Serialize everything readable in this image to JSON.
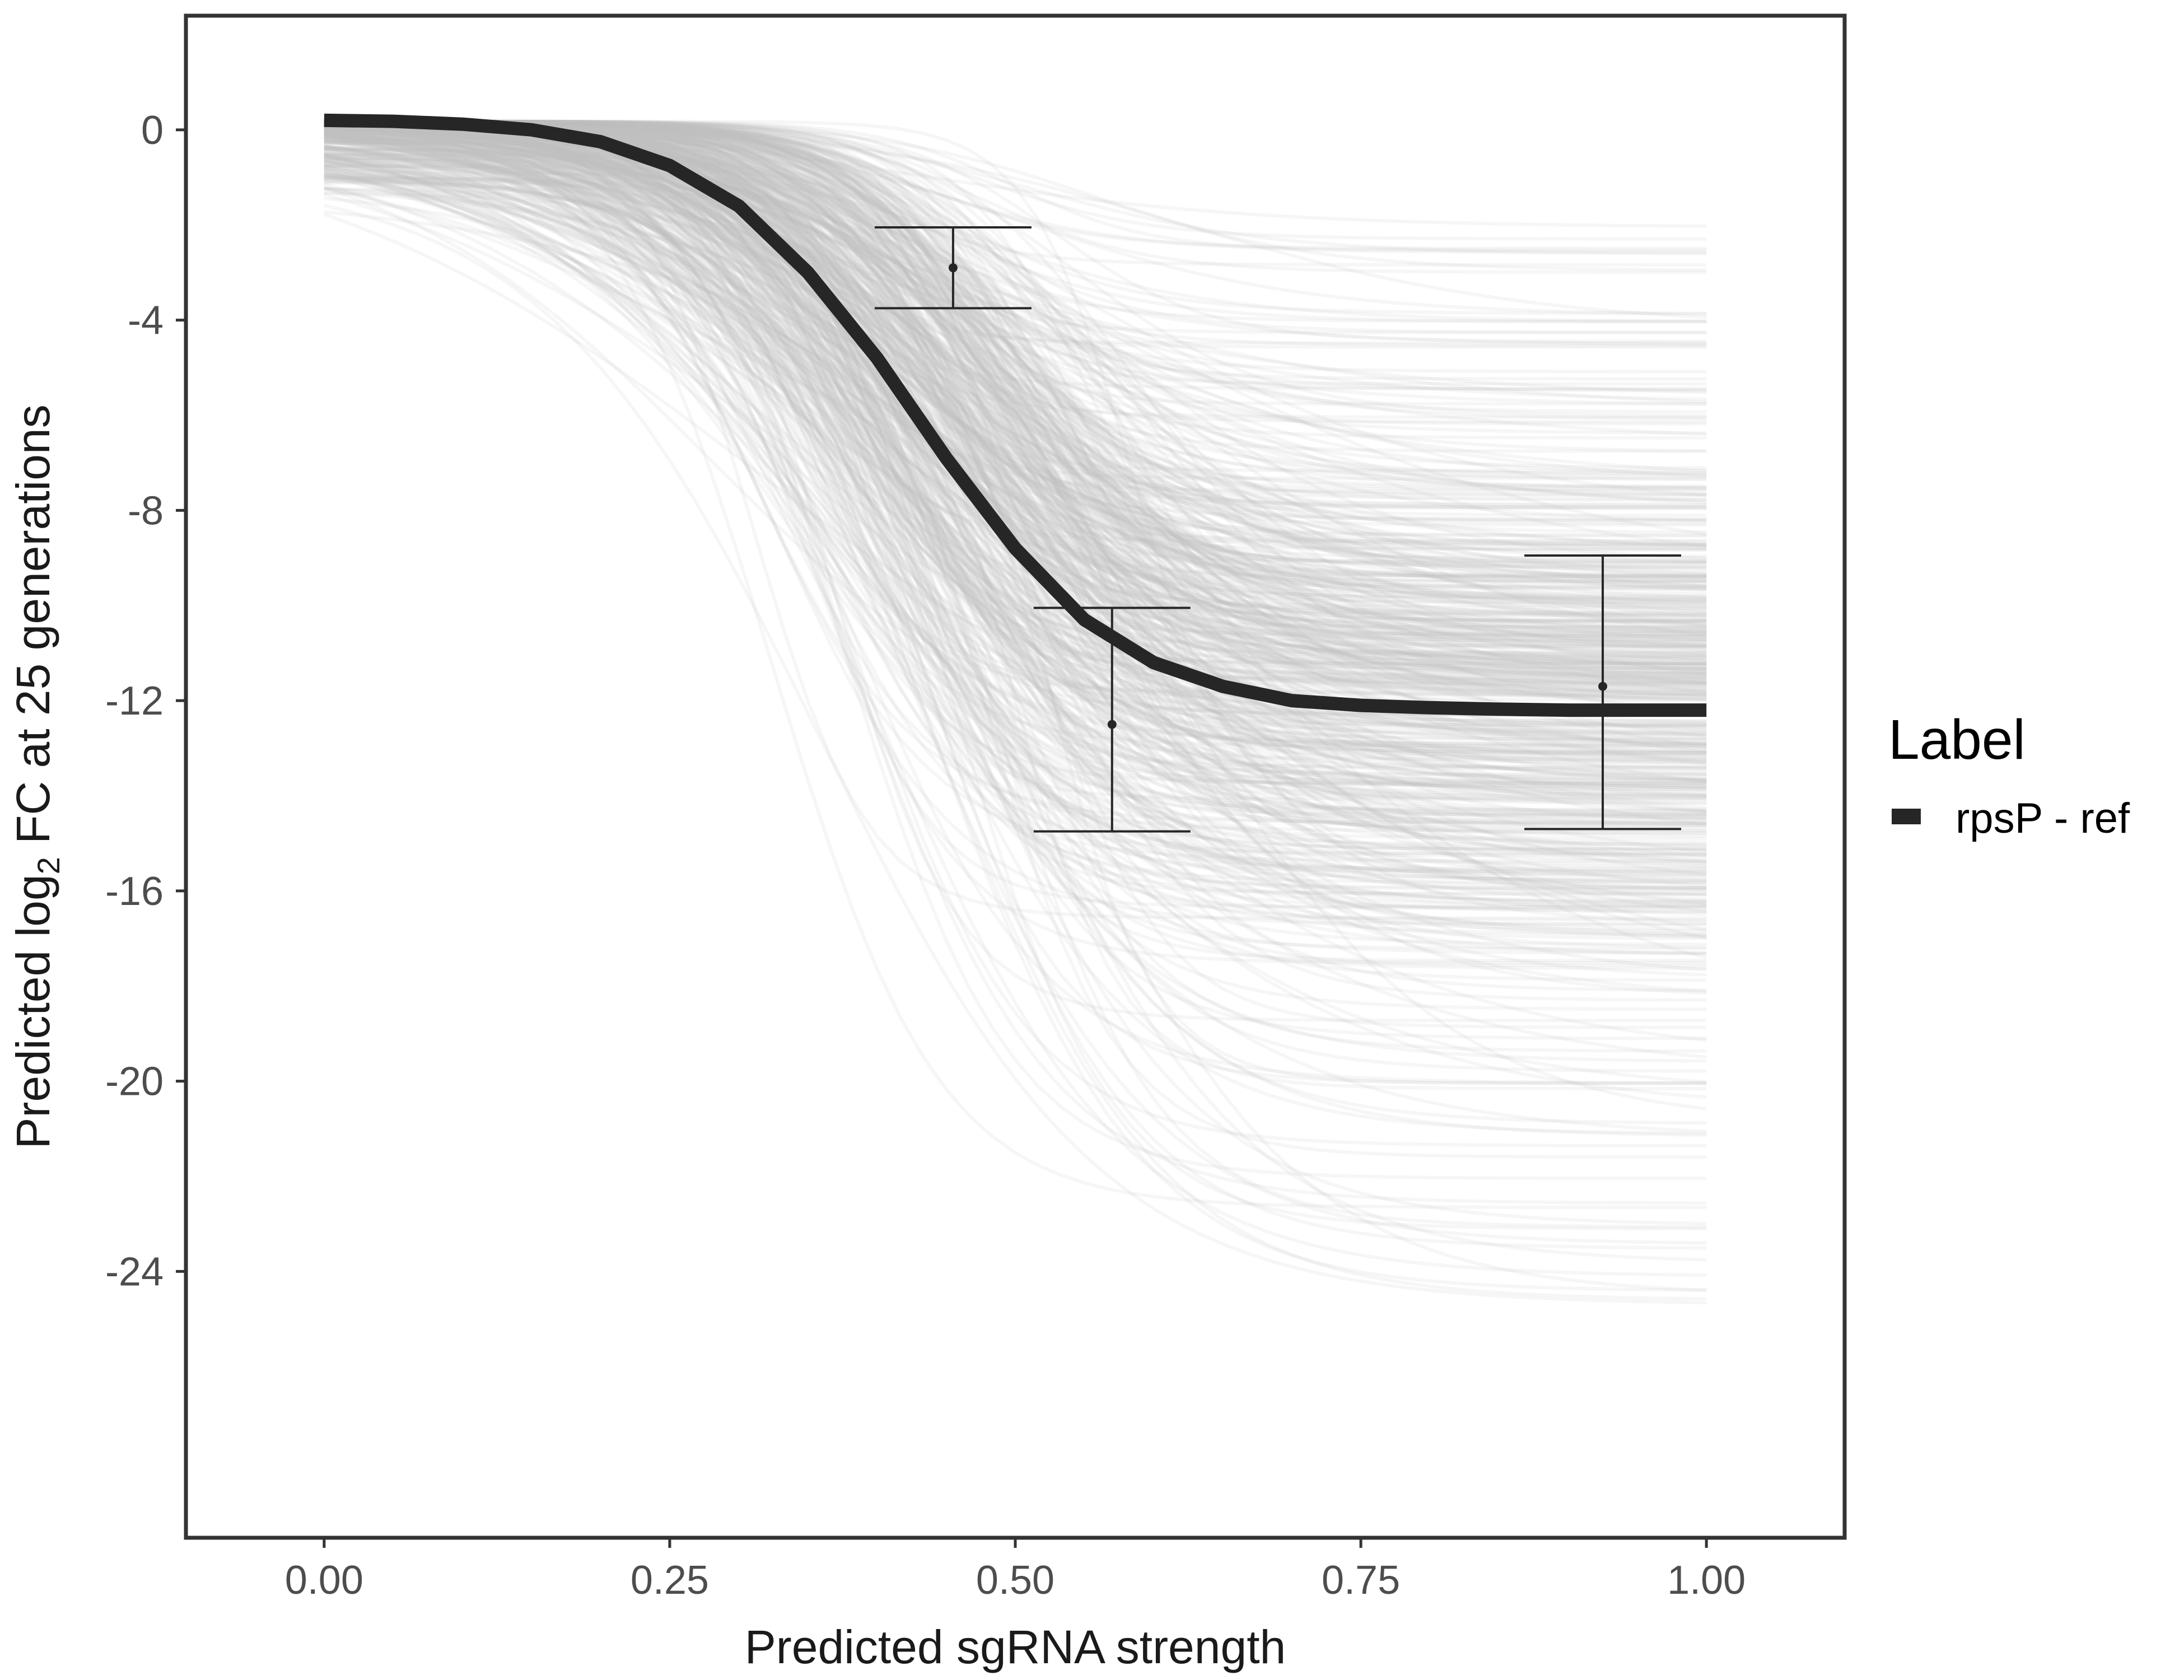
{
  "chart_data": {
    "type": "line",
    "xlabel": "Predicted sgRNA strength",
    "ylabel": {
      "prefix": "Predicted  log",
      "subscript": "2",
      "suffix": " FC at 25 generations"
    },
    "xlim": [
      -0.1,
      1.1
    ],
    "ylim": [
      -29.6,
      2.4
    ],
    "x_ticks": [
      {
        "value": 0.0,
        "label": "0.00"
      },
      {
        "value": 0.25,
        "label": "0.25"
      },
      {
        "value": 0.5,
        "label": "0.50"
      },
      {
        "value": 0.75,
        "label": "0.75"
      },
      {
        "value": 1.0,
        "label": "1.00"
      }
    ],
    "y_ticks": [
      {
        "value": 0,
        "label": "0"
      },
      {
        "value": -4,
        "label": "-4"
      },
      {
        "value": -8,
        "label": "-8"
      },
      {
        "value": -12,
        "label": "-12"
      },
      {
        "value": -16,
        "label": "-16"
      },
      {
        "value": -20,
        "label": "-20"
      },
      {
        "value": -24,
        "label": "-24"
      }
    ],
    "grid": false,
    "legend": {
      "title": "Label",
      "position": "right",
      "entries": [
        {
          "label": "rpsP - ref",
          "color": "#262626"
        }
      ]
    },
    "series": [
      {
        "name": "rpsP - ref",
        "color": "#262626",
        "x": [
          0.0,
          0.05,
          0.1,
          0.15,
          0.2,
          0.25,
          0.3,
          0.35,
          0.4,
          0.45,
          0.5,
          0.55,
          0.6,
          0.65,
          0.7,
          0.75,
          0.8,
          0.85,
          0.9,
          0.95,
          1.0
        ],
        "y": [
          0.2,
          0.18,
          0.12,
          0.0,
          -0.25,
          -0.75,
          -1.6,
          -3.0,
          -4.8,
          -6.9,
          -8.8,
          -10.3,
          -11.2,
          -11.7,
          -12.0,
          -12.1,
          -12.15,
          -12.18,
          -12.2,
          -12.2,
          -12.2
        ]
      }
    ],
    "posterior_draws": {
      "description_note": "background sample of sigmoid fits drawn as light grey curves",
      "count": 600,
      "color": "#bdbdbd"
    },
    "error_bars": [
      {
        "x": 0.455,
        "y": -2.9,
        "ymin": -3.75,
        "ymax": -2.05
      },
      {
        "x": 0.57,
        "y": -12.5,
        "ymin": -14.75,
        "ymax": -10.05
      },
      {
        "x": 0.925,
        "y": -11.7,
        "ymin": -14.7,
        "ymax": -8.95
      }
    ]
  },
  "colors": {
    "panel_border": "#333333",
    "axis_text": "#4d4d4d",
    "draw_line": "#bdbdbd",
    "fit_line": "#262626",
    "error_bar": "#262626"
  }
}
